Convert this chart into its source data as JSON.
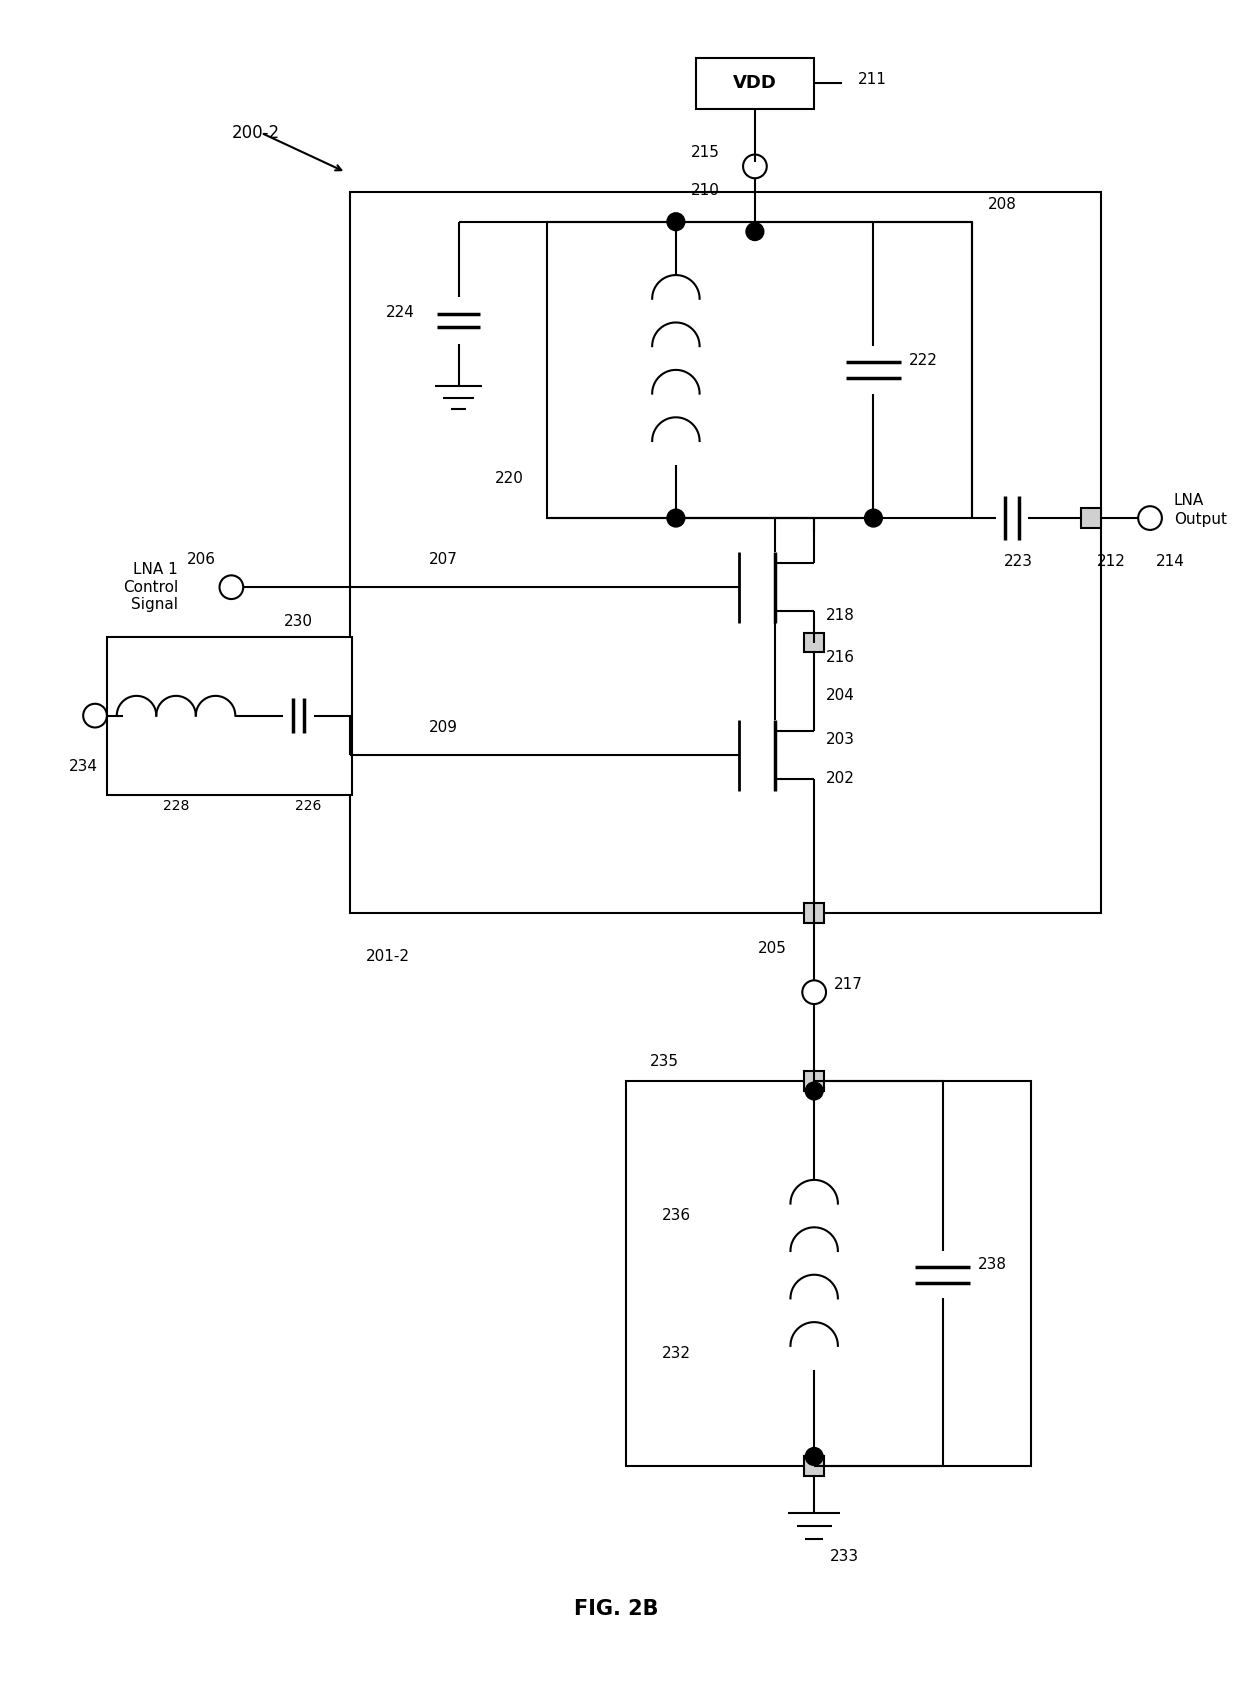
{
  "bg_color": "#ffffff",
  "line_color": "#000000",
  "fig_width": 12.4,
  "fig_height": 16.94,
  "title": "FIG. 2B",
  "label_200_2": "200-2",
  "label_211": "211",
  "label_vdd": "VDD",
  "label_215": "215",
  "label_208": "208",
  "label_210": "210",
  "label_224": "224",
  "label_222": "222",
  "label_220": "220",
  "label_223": "223",
  "label_212": "212",
  "label_lna_output": "LNA\nOutput",
  "label_214": "214",
  "label_206": "206",
  "label_lna1": "LNA 1\nControl\nSignal",
  "label_207": "207",
  "label_218": "218",
  "label_216": "216",
  "label_204": "204",
  "label_209": "209",
  "label_203": "203",
  "label_202": "202",
  "label_205": "205",
  "label_201_2": "201-2",
  "label_230": "230",
  "label_228": "228",
  "label_226": "226",
  "label_234": "234",
  "label_217": "217",
  "label_235": "235",
  "label_236": "236",
  "label_232": "232",
  "label_238": "238",
  "label_233": "233"
}
